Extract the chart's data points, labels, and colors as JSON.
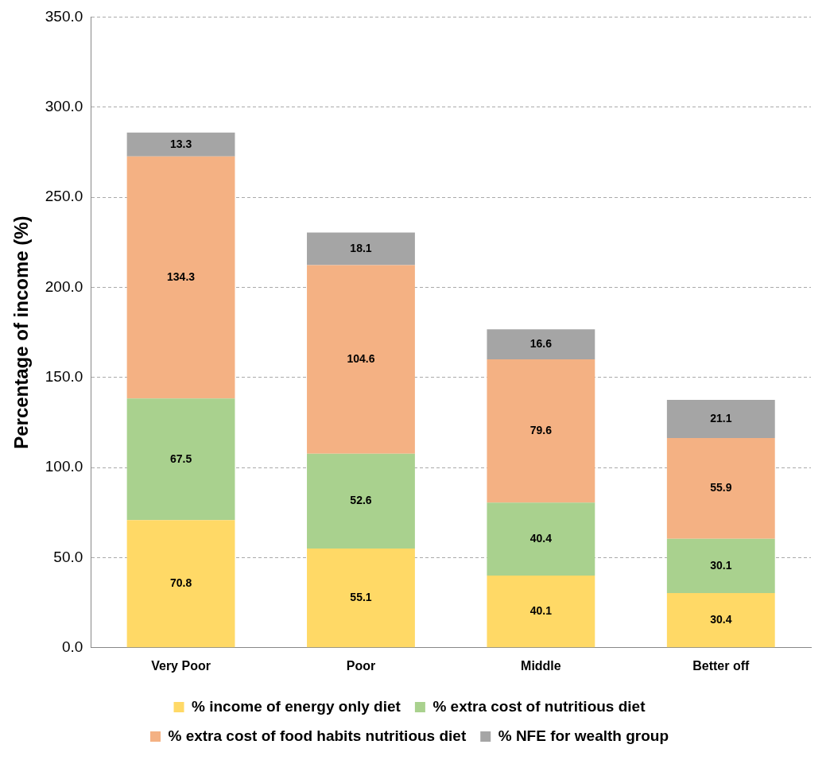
{
  "chart_data": {
    "type": "bar",
    "stacked": true,
    "ylabel": "Percentage of income (%)",
    "categories": [
      "Very Poor",
      "Poor",
      "Middle",
      "Better off"
    ],
    "series": [
      {
        "name": "% income of energy only diet",
        "color": "#ffd966",
        "values": [
          70.8,
          55.1,
          40.1,
          30.4
        ]
      },
      {
        "name": "% extra cost of nutritious diet",
        "color": "#a9d18e",
        "values": [
          67.5,
          52.6,
          40.4,
          30.1
        ]
      },
      {
        "name": "% extra cost of food habits nutritious diet",
        "color": "#f4b183",
        "values": [
          134.3,
          104.6,
          79.6,
          55.9
        ]
      },
      {
        "name": "% NFE for wealth group",
        "color": "#a5a5a5",
        "values": [
          13.3,
          18.1,
          16.6,
          21.1
        ]
      }
    ],
    "ylim": [
      0,
      350
    ],
    "yticks": [
      {
        "value": 0,
        "label": "0.0"
      },
      {
        "value": 50,
        "label": "50.0"
      },
      {
        "value": 100,
        "label": "100.0"
      },
      {
        "value": 150,
        "label": "150.0"
      },
      {
        "value": 200,
        "label": "200.0"
      },
      {
        "value": 250,
        "label": "250.0"
      },
      {
        "value": 300,
        "label": "300.0"
      },
      {
        "value": 350,
        "label": "350.0"
      }
    ],
    "grid": "y",
    "legend": "bottom",
    "data_labels": true
  }
}
